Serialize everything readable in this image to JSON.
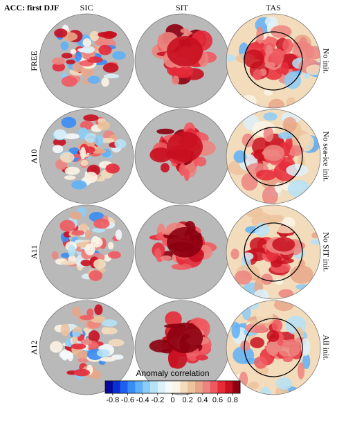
{
  "title": "ACC: first DJF",
  "columns": [
    "SIC",
    "SIT",
    "TAS"
  ],
  "rows": [
    {
      "label": "FREE",
      "note": "No init."
    },
    {
      "label": "A10",
      "note": "No sea-ice init."
    },
    {
      "label": "A11",
      "note": "No SIT init."
    },
    {
      "label": "A12",
      "note": "All init."
    }
  ],
  "colorbar": {
    "label": "Anomaly correlation",
    "lim": [
      -0.9,
      0.9
    ],
    "ticks": [
      -0.8,
      -0.6,
      -0.4,
      -0.2,
      0,
      0.2,
      0.4,
      0.6,
      0.8
    ],
    "colors": [
      "#08089a",
      "#0a2fd0",
      "#1f5ff0",
      "#3a8cf5",
      "#5fb1f7",
      "#8ccdf7",
      "#b5e2f7",
      "#dcf1fa",
      "#f6fafc",
      "#fcf4e6",
      "#f3dcbc",
      "#ecc39e",
      "#e8a688",
      "#ec8580",
      "#ef5a60",
      "#e62a3a",
      "#c81020",
      "#8c0010"
    ]
  }
}
